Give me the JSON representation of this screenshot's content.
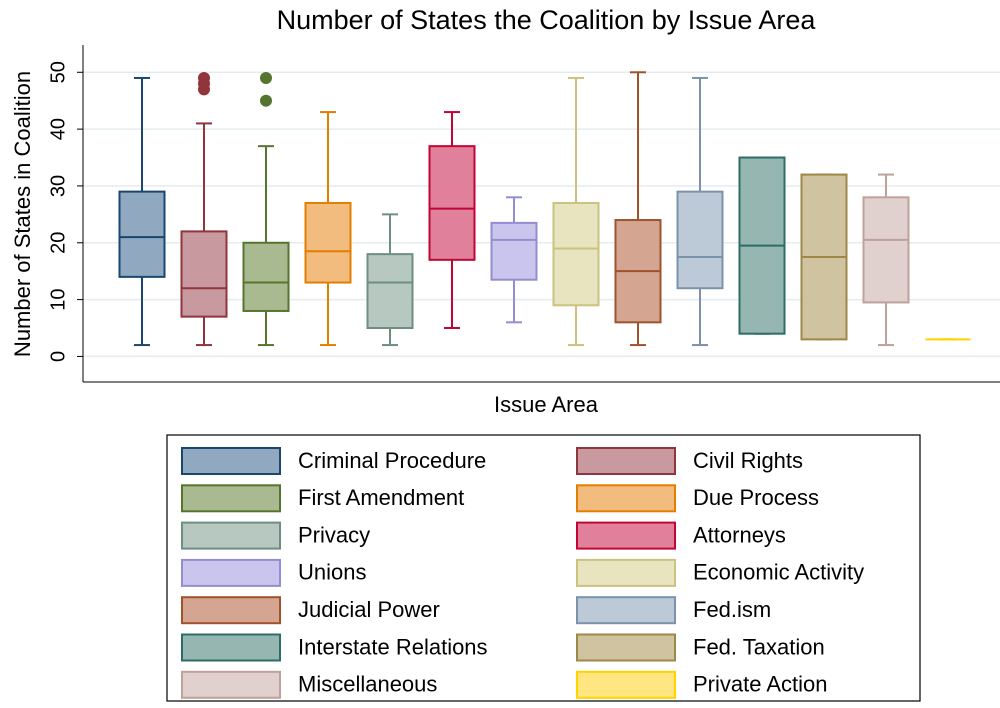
{
  "chart_data": {
    "type": "box",
    "title": "Number of States the Coalition by Issue Area",
    "x_label": "Issue Area",
    "y_label": "Number of States in Coalition",
    "ylim": [
      -4.5,
      54.8
    ],
    "yticks": [
      0,
      10,
      20,
      30,
      40,
      50
    ],
    "grid": true,
    "legend": "bottom",
    "series": [
      {
        "name": "Criminal Procedure",
        "color": "#1a476f",
        "fill": "#90a8c0",
        "min": 2,
        "q1": 14,
        "median": 21,
        "q3": 29,
        "max": 49,
        "outliers": []
      },
      {
        "name": "Civil Rights",
        "color": "#90353b",
        "fill": "#c89aa0",
        "min": 2,
        "q1": 7,
        "median": 12,
        "q3": 22,
        "max": 41,
        "outliers": [
          47,
          48,
          49
        ]
      },
      {
        "name": "First Amendment",
        "color": "#55752f",
        "fill": "#a9ba90",
        "min": 2,
        "q1": 8,
        "median": 13,
        "q3": 20,
        "max": 37,
        "outliers": [
          45,
          49
        ]
      },
      {
        "name": "Due Process",
        "color": "#e37e00",
        "fill": "#f2bc7e",
        "min": 2,
        "q1": 13,
        "median": 18.5,
        "q3": 27,
        "max": 43,
        "outliers": []
      },
      {
        "name": "Privacy",
        "color": "#6e8e84",
        "fill": "#b6c8c0",
        "min": 2,
        "q1": 5,
        "median": 13,
        "q3": 18,
        "max": 25,
        "outliers": []
      },
      {
        "name": "Attorneys",
        "color": "#c10534",
        "fill": "#e0809a",
        "min": 5,
        "q1": 17,
        "median": 26,
        "q3": 37,
        "max": 43,
        "outliers": []
      },
      {
        "name": "Unions",
        "color": "#938dd2",
        "fill": "#c9c5ec",
        "min": 6,
        "q1": 13.5,
        "median": 20.5,
        "q3": 23.5,
        "max": 28,
        "outliers": []
      },
      {
        "name": "Economic Activity",
        "color": "#cac27e",
        "fill": "#e8e4c0",
        "min": 2,
        "q1": 9,
        "median": 19,
        "q3": 27,
        "max": 49,
        "outliers": []
      },
      {
        "name": "Judicial Power",
        "color": "#a0522d",
        "fill": "#d4a590",
        "min": 2,
        "q1": 6,
        "median": 15,
        "q3": 24,
        "max": 50,
        "outliers": []
      },
      {
        "name": "Fed.ism",
        "color": "#7b92a8",
        "fill": "#bccad8",
        "min": 2,
        "q1": 12,
        "median": 17.5,
        "q3": 29,
        "max": 49,
        "outliers": []
      },
      {
        "name": "Interstate Relations",
        "color": "#2d6d66",
        "fill": "#96b6b2",
        "min": 4,
        "q1": 4,
        "median": 19.5,
        "q3": 35,
        "max": 35,
        "outliers": []
      },
      {
        "name": "Fed. Taxation",
        "color": "#9c8847",
        "fill": "#cfc3a0",
        "min": 3,
        "q1": 3,
        "median": 17.5,
        "q3": 32,
        "max": 32,
        "outliers": []
      },
      {
        "name": "Miscellaneous",
        "color": "#bfa19c",
        "fill": "#e0d0ce",
        "min": 2,
        "q1": 9.5,
        "median": 20.5,
        "q3": 28,
        "max": 32,
        "outliers": []
      },
      {
        "name": "Private Action",
        "color": "#ffd200",
        "fill": "#ffe680",
        "min": 3,
        "q1": 3,
        "median": 3,
        "q3": 3,
        "max": 3,
        "outliers": []
      }
    ]
  }
}
